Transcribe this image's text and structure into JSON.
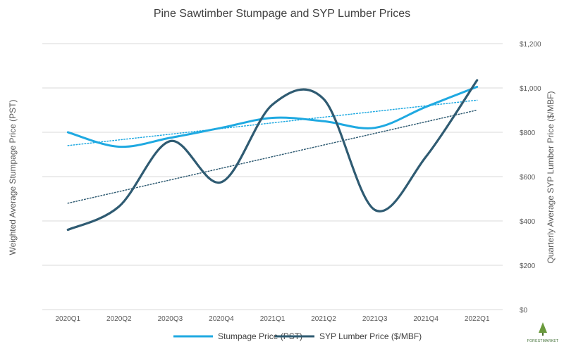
{
  "chart_data": {
    "type": "line",
    "title": "Pine Sawtimber Stumpage and SYP Lumber Prices",
    "xlabel": "",
    "ylabel_left": "Weighted Average Stumpage Price (PST)",
    "ylabel_right": "Quarterly Average SYP Lumber Price ($/MBF)",
    "categories": [
      "2020Q1",
      "2020Q2",
      "2020Q3",
      "2020Q4",
      "2021Q1",
      "2021Q2",
      "2021Q3",
      "2021Q4",
      "2022Q1"
    ],
    "right_axis": {
      "ylim": [
        0,
        1200
      ],
      "ticks": [
        0,
        200,
        400,
        600,
        800,
        1000,
        1200
      ],
      "tick_labels": [
        "$0",
        "$200",
        "$400",
        "$600",
        "$800",
        "$1,000",
        "$1,200"
      ]
    },
    "grid": true,
    "legend_position": "bottom",
    "series": [
      {
        "name": "Stumpage Price (PST)",
        "axis": "right",
        "color": "#1fa9e1",
        "values": [
          800,
          735,
          775,
          820,
          865,
          850,
          820,
          915,
          1005
        ],
        "trendline": [
          740,
          945
        ]
      },
      {
        "name": "SYP Lumber Price ($/MBF)",
        "axis": "right",
        "color": "#2f5b72",
        "values": [
          360,
          465,
          760,
          575,
          925,
          950,
          450,
          690,
          1035
        ],
        "trendline": [
          480,
          900
        ]
      }
    ]
  },
  "logo": {
    "text": "FORESTMARKET"
  }
}
